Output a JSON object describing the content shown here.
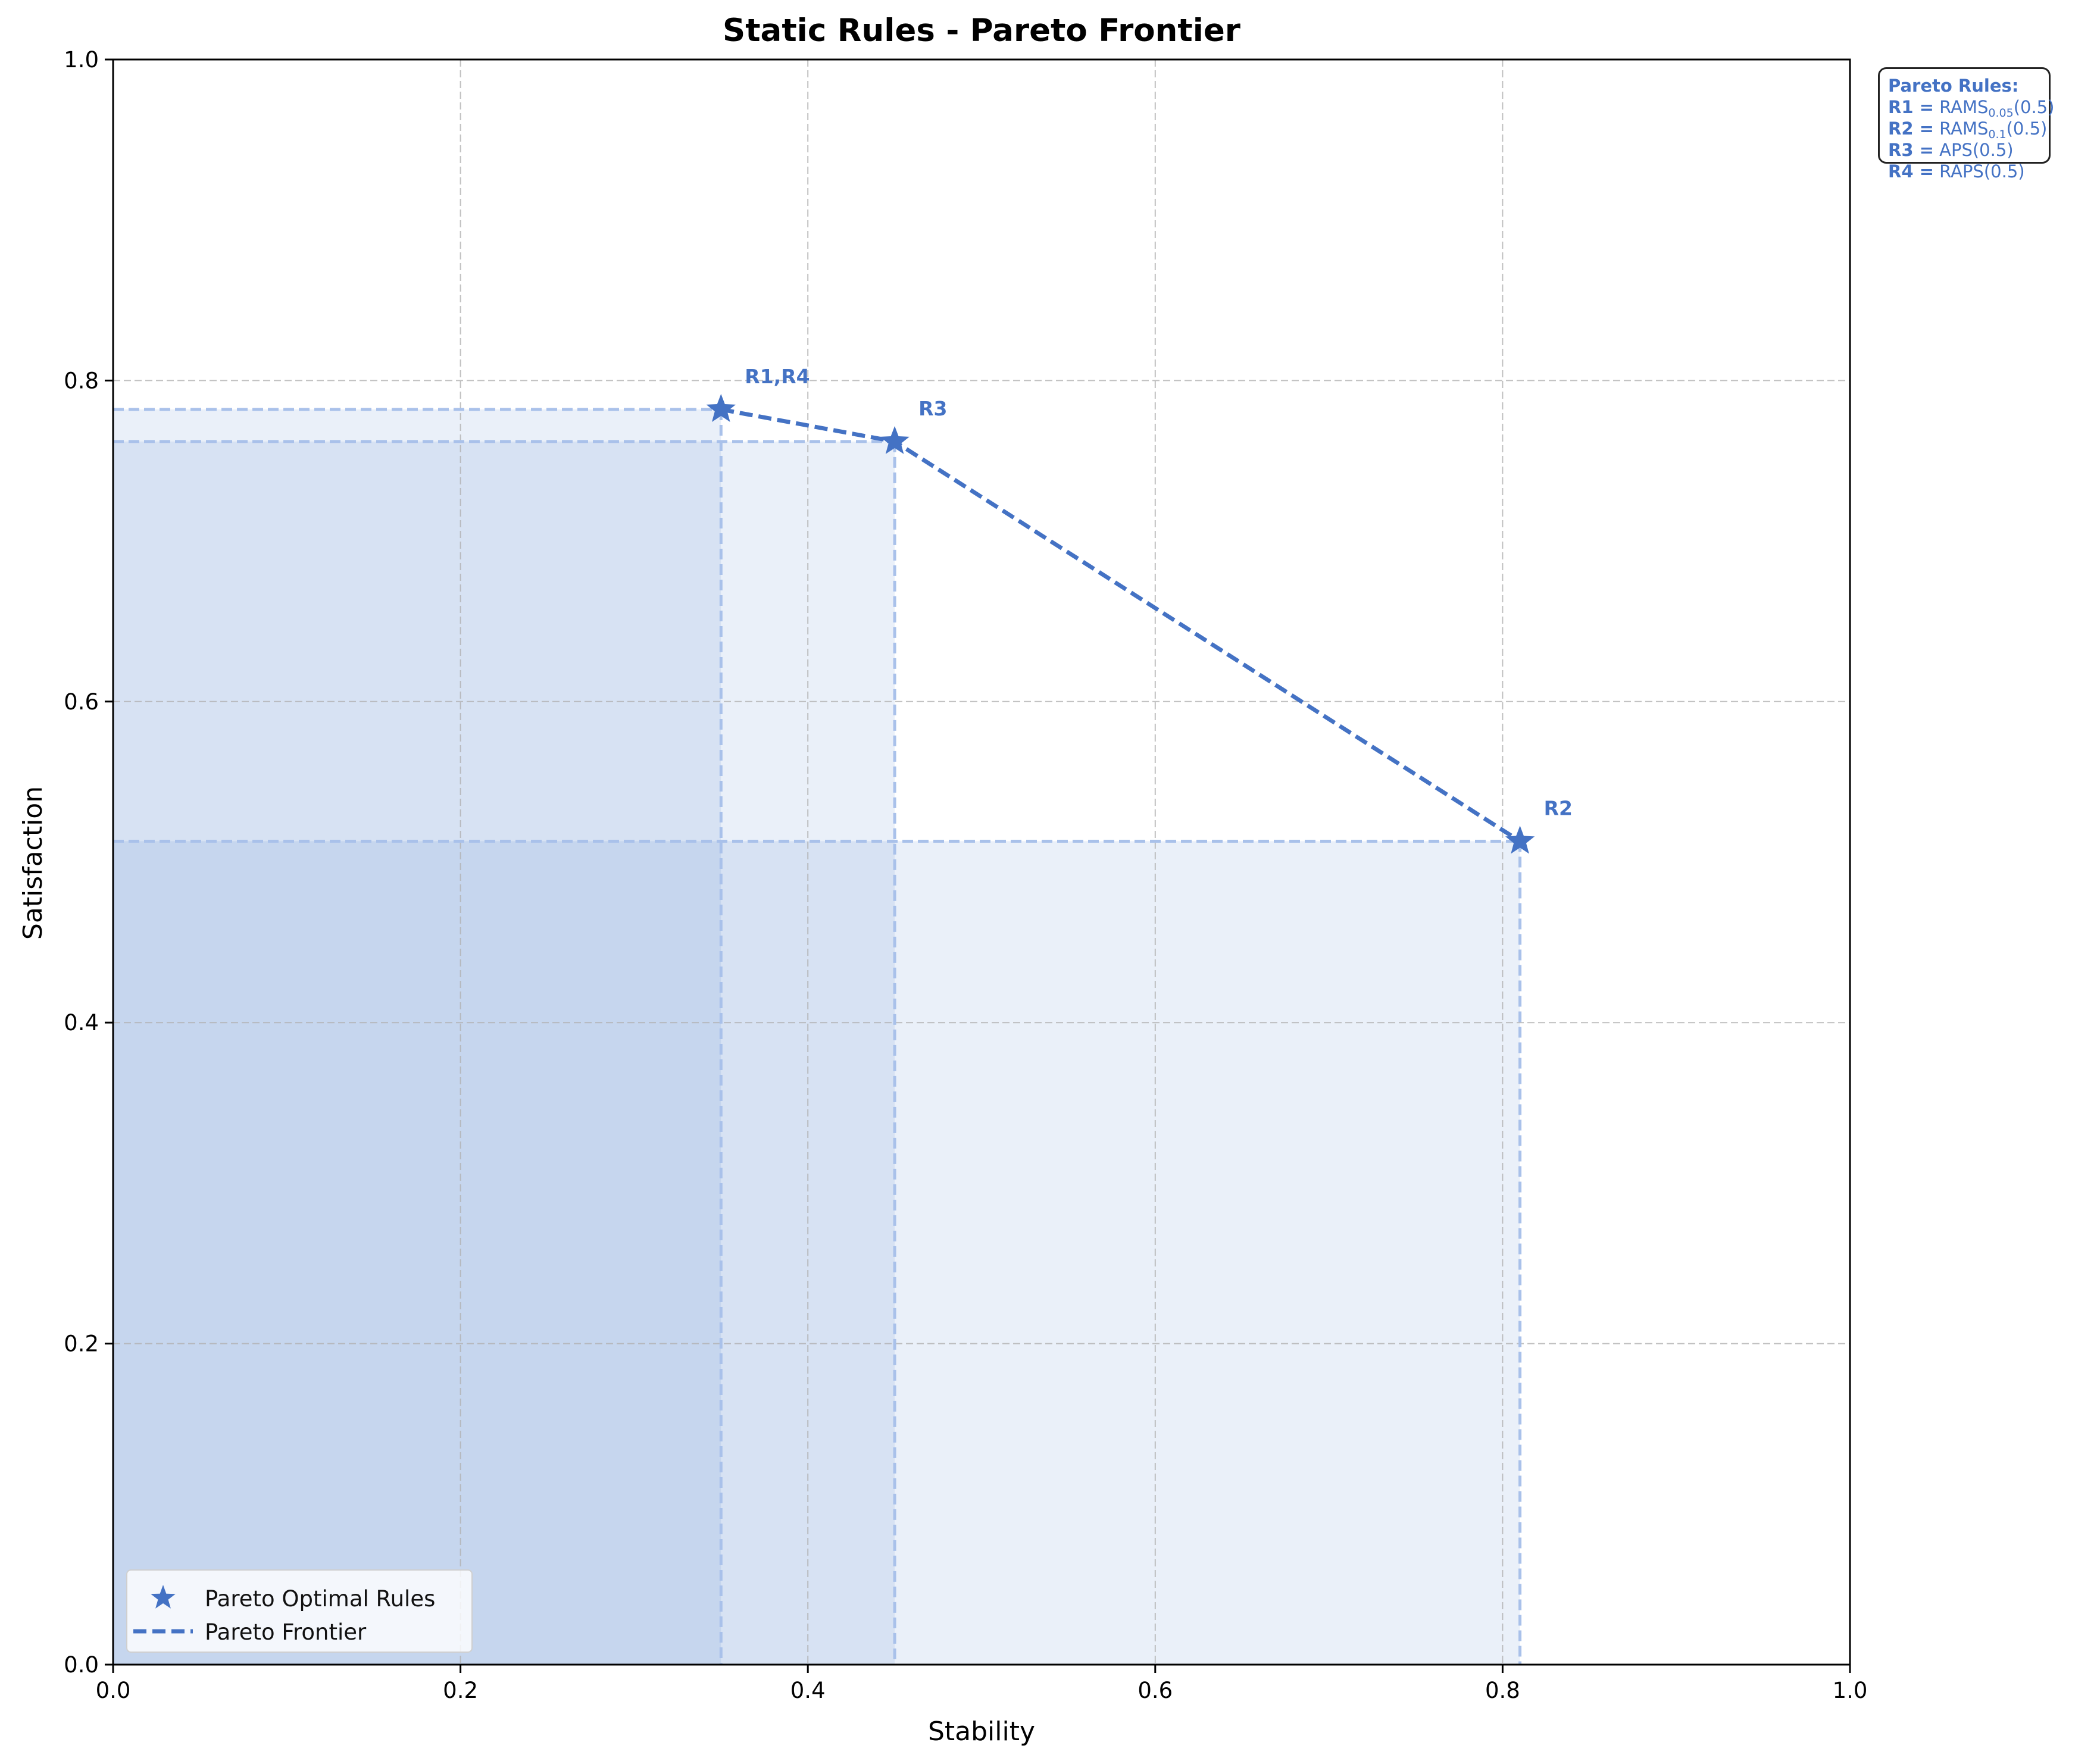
{
  "chart_data": {
    "type": "scatter",
    "title": "Static Rules - Pareto Frontier",
    "xlabel": "Stability",
    "ylabel": "Satisfaction",
    "xlim": [
      0.0,
      1.0
    ],
    "ylim": [
      0.0,
      1.0
    ],
    "xticks": [
      "0.0",
      "0.2",
      "0.4",
      "0.6",
      "0.8",
      "1.0"
    ],
    "yticks": [
      "0.0",
      "0.2",
      "0.4",
      "0.6",
      "0.8",
      "1.0"
    ],
    "grid": true,
    "legend_position": "lower-left",
    "series": [
      {
        "name": "Pareto Optimal Rules",
        "marker": "star",
        "points": [
          {
            "label": "R1,R4",
            "x": 0.35,
            "y": 0.782
          },
          {
            "label": "R3",
            "x": 0.45,
            "y": 0.762
          },
          {
            "label": "R2",
            "x": 0.81,
            "y": 0.513
          }
        ]
      },
      {
        "name": "Pareto Frontier",
        "style": "dashed",
        "points": [
          {
            "x": 0.35,
            "y": 0.782
          },
          {
            "x": 0.45,
            "y": 0.762
          },
          {
            "x": 0.81,
            "y": 0.513
          }
        ]
      }
    ],
    "colors": {
      "series": "#4472C4",
      "region": "#4472C4",
      "guide": "#A9C1EA"
    }
  },
  "rules_box": {
    "title": "Pareto Rules:",
    "rules": [
      {
        "key": "R1 =",
        "name": "RAMS",
        "sub": "0.05",
        "arg": "(0.5)"
      },
      {
        "key": "R2 =",
        "name": "RAMS",
        "sub": "0.1",
        "arg": "(0.5)"
      },
      {
        "key": "R3 =",
        "name": "APS",
        "sub": "",
        "arg": "(0.5)"
      },
      {
        "key": "R4 =",
        "name": "RAPS",
        "sub": "",
        "arg": "(0.5)"
      }
    ]
  }
}
